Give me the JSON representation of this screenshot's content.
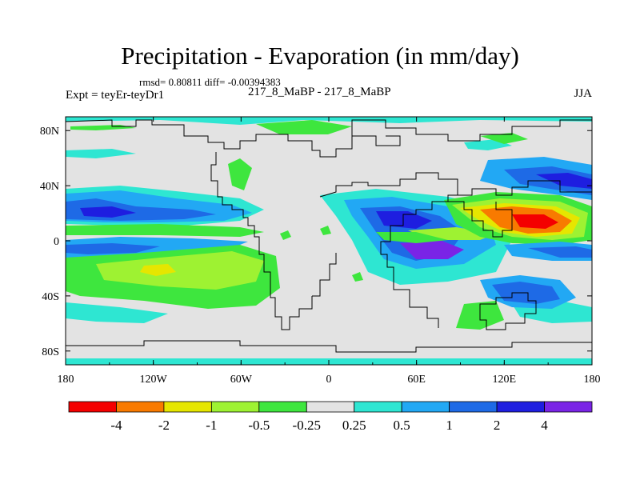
{
  "chart_data": {
    "type": "heatmap",
    "title": "Precipitation - Evaporation (in mm/day)",
    "stats_text": "rmsd= 0.80811 diff= -0.00394383",
    "experiment_label": "Expt = teyEr-teyDr1",
    "subtitle": "217_8_MaBP - 217_8_MaBP",
    "season": "JJA",
    "x_ticks": [
      "180",
      "120W",
      "60W",
      "0",
      "60E",
      "120E",
      "180"
    ],
    "y_ticks": [
      "80N",
      "40N",
      "0",
      "40S",
      "80S"
    ],
    "xlim": [
      -180,
      180
    ],
    "ylim": [
      -90,
      90
    ],
    "colorbar": {
      "colors": [
        "#f40000",
        "#f87a00",
        "#e6e600",
        "#9ef232",
        "#3ee63e",
        "#e3e3e3",
        "#2ee6d2",
        "#22a8f4",
        "#1e6ae6",
        "#1e1ee0",
        "#7a24e6"
      ],
      "labels": [
        "-4",
        "-2",
        "-1",
        "-0.5",
        "-0.25",
        "0.25",
        "0.5",
        "1",
        "2",
        "4"
      ]
    },
    "regions": [
      {
        "name": "nh-subtropical-wet-band",
        "value": "1 to 2",
        "color": "#1e6ae6"
      },
      {
        "name": "equatorial-dry-band",
        "value": "-0.5 to -1",
        "color": "#9ef232"
      },
      {
        "name": "south-atlantic-dry",
        "value": "-0.5 to -1",
        "color": "#9ef232"
      },
      {
        "name": "west-pacific-dry-core",
        "value": "< -2",
        "color": "#f87a00"
      },
      {
        "name": "indian-ocean-wet-core",
        "value": "> 4",
        "color": "#7a24e6"
      },
      {
        "name": "southern-ocean-wet",
        "value": "0.25 to 0.5",
        "color": "#2ee6d2"
      }
    ]
  }
}
